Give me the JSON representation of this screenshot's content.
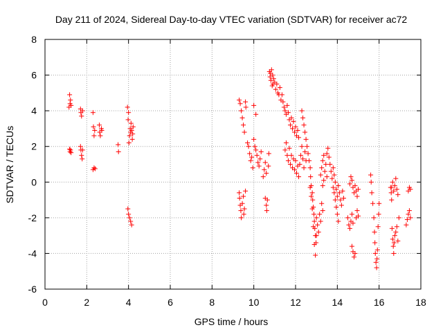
{
  "chart_data": {
    "type": "scatter",
    "title": "Day 211 of 2024, Sidereal Day-to-day VTEC variation (SDTVAR) for receiver ac72",
    "xlabel": "GPS time / hours",
    "ylabel": "SDTVAR / TECUs",
    "xlim": [
      0,
      18
    ],
    "ylim": [
      -6,
      8
    ],
    "xticks": [
      "0",
      "2",
      "4",
      "6",
      "8",
      "10",
      "12",
      "14",
      "16",
      "18"
    ],
    "yticks": [
      "-6",
      "-4",
      "-2",
      "0",
      "2",
      "4",
      "6",
      "8"
    ],
    "grid": true,
    "marker": "plus",
    "marker_color": "#ff0000",
    "series": [
      {
        "name": "SDTVAR",
        "points": [
          [
            1.15,
            4.2
          ],
          [
            1.18,
            4.9
          ],
          [
            1.2,
            4.4
          ],
          [
            1.22,
            4.6
          ],
          [
            1.25,
            4.3
          ],
          [
            1.2,
            1.7
          ],
          [
            1.22,
            1.8
          ],
          [
            1.25,
            1.65
          ],
          [
            1.18,
            1.85
          ],
          [
            1.7,
            4.1
          ],
          [
            1.72,
            3.9
          ],
          [
            1.75,
            3.7
          ],
          [
            1.8,
            4.0
          ],
          [
            1.7,
            2.0
          ],
          [
            1.72,
            1.8
          ],
          [
            1.75,
            1.5
          ],
          [
            1.78,
            1.3
          ],
          [
            1.8,
            1.8
          ],
          [
            2.3,
            3.9
          ],
          [
            2.32,
            3.1
          ],
          [
            2.35,
            2.6
          ],
          [
            2.38,
            2.9
          ],
          [
            2.3,
            0.7
          ],
          [
            2.35,
            0.8
          ],
          [
            2.4,
            0.75
          ],
          [
            2.6,
            3.2
          ],
          [
            2.62,
            2.8
          ],
          [
            2.65,
            2.6
          ],
          [
            2.7,
            3.0
          ],
          [
            2.72,
            2.9
          ],
          [
            3.5,
            2.1
          ],
          [
            3.52,
            1.7
          ],
          [
            3.95,
            4.2
          ],
          [
            3.98,
            3.5
          ],
          [
            4.0,
            3.9
          ],
          [
            4.02,
            2.2
          ],
          [
            4.05,
            2.6
          ],
          [
            4.08,
            3.0
          ],
          [
            4.1,
            2.8
          ],
          [
            4.12,
            3.3
          ],
          [
            4.15,
            2.9
          ],
          [
            4.18,
            2.4
          ],
          [
            4.2,
            2.7
          ],
          [
            4.22,
            3.1
          ],
          [
            3.97,
            -1.5
          ],
          [
            4.0,
            -1.8
          ],
          [
            4.05,
            -2.0
          ],
          [
            4.1,
            -2.2
          ],
          [
            4.15,
            -2.4
          ],
          [
            9.3,
            -0.6
          ],
          [
            9.32,
            -0.9
          ],
          [
            9.35,
            -1.3
          ],
          [
            9.38,
            -1.6
          ],
          [
            9.4,
            -2.0
          ],
          [
            9.45,
            -1.2
          ],
          [
            9.5,
            -0.8
          ],
          [
            9.52,
            -1.8
          ],
          [
            9.55,
            -1.5
          ],
          [
            9.6,
            -0.5
          ],
          [
            9.3,
            4.6
          ],
          [
            9.35,
            4.4
          ],
          [
            9.4,
            4.0
          ],
          [
            9.45,
            3.6
          ],
          [
            9.5,
            3.2
          ],
          [
            9.55,
            2.8
          ],
          [
            9.6,
            4.5
          ],
          [
            9.62,
            4.2
          ],
          [
            9.7,
            2.2
          ],
          [
            9.75,
            2.0
          ],
          [
            9.8,
            1.6
          ],
          [
            9.85,
            1.2
          ],
          [
            9.9,
            1.4
          ],
          [
            9.95,
            0.8
          ],
          [
            10.0,
            2.4
          ],
          [
            10.05,
            2.0
          ],
          [
            10.1,
            1.8
          ],
          [
            10.15,
            1.5
          ],
          [
            10.2,
            1.1
          ],
          [
            10.25,
            0.9
          ],
          [
            10.3,
            1.3
          ],
          [
            10.35,
            1.7
          ],
          [
            10.0,
            4.3
          ],
          [
            10.1,
            3.8
          ],
          [
            10.45,
            0.3
          ],
          [
            10.5,
            0.7
          ],
          [
            10.55,
            1.1
          ],
          [
            10.6,
            0.5
          ],
          [
            10.55,
            -0.9
          ],
          [
            10.6,
            -1.3
          ],
          [
            10.62,
            -1.6
          ],
          [
            10.65,
            -1.0
          ],
          [
            10.7,
            0.9
          ],
          [
            10.72,
            1.6
          ],
          [
            10.75,
            6.2
          ],
          [
            10.78,
            5.9
          ],
          [
            10.8,
            6.1
          ],
          [
            10.82,
            5.7
          ],
          [
            10.85,
            6.3
          ],
          [
            10.88,
            5.4
          ],
          [
            10.9,
            6.0
          ],
          [
            10.92,
            5.5
          ],
          [
            10.95,
            5.8
          ],
          [
            11.0,
            5.6
          ],
          [
            11.05,
            5.2
          ],
          [
            11.1,
            5.5
          ],
          [
            11.15,
            5.0
          ],
          [
            11.2,
            4.9
          ],
          [
            11.25,
            5.3
          ],
          [
            11.3,
            4.6
          ],
          [
            11.35,
            4.9
          ],
          [
            11.4,
            4.5
          ],
          [
            11.45,
            4.2
          ],
          [
            11.5,
            4.0
          ],
          [
            11.55,
            3.8
          ],
          [
            11.6,
            4.3
          ],
          [
            11.65,
            3.9
          ],
          [
            11.7,
            3.5
          ],
          [
            11.75,
            3.2
          ],
          [
            11.8,
            3.6
          ],
          [
            11.85,
            3.0
          ],
          [
            11.9,
            3.4
          ],
          [
            11.95,
            2.8
          ],
          [
            12.0,
            3.1
          ],
          [
            12.05,
            2.6
          ],
          [
            12.1,
            2.9
          ],
          [
            12.15,
            2.5
          ],
          [
            11.5,
            1.8
          ],
          [
            11.55,
            2.2
          ],
          [
            11.6,
            1.5
          ],
          [
            11.65,
            1.2
          ],
          [
            11.7,
            1.9
          ],
          [
            11.75,
            1.0
          ],
          [
            11.8,
            1.5
          ],
          [
            11.85,
            0.8
          ],
          [
            11.9,
            1.3
          ],
          [
            11.95,
            0.7
          ],
          [
            12.0,
            1.2
          ],
          [
            12.05,
            0.5
          ],
          [
            12.1,
            0.9
          ],
          [
            12.15,
            0.3
          ],
          [
            12.2,
            1.0
          ],
          [
            12.25,
            1.5
          ],
          [
            12.3,
            2.0
          ],
          [
            12.35,
            1.3
          ],
          [
            12.4,
            0.8
          ],
          [
            12.45,
            1.7
          ],
          [
            12.5,
            1.2
          ],
          [
            12.3,
            4.0
          ],
          [
            12.35,
            3.6
          ],
          [
            12.4,
            3.2
          ],
          [
            12.45,
            2.8
          ],
          [
            12.5,
            2.4
          ],
          [
            12.55,
            2.0
          ],
          [
            12.6,
            1.6
          ],
          [
            12.65,
            1.2
          ],
          [
            12.7,
            0.8
          ],
          [
            12.72,
            0.3
          ],
          [
            12.75,
            -0.2
          ],
          [
            12.8,
            -0.6
          ],
          [
            12.82,
            -1.0
          ],
          [
            12.85,
            -1.4
          ],
          [
            12.88,
            -1.8
          ],
          [
            12.9,
            -2.2
          ],
          [
            12.92,
            -2.6
          ],
          [
            12.95,
            -3.0
          ],
          [
            12.98,
            -3.4
          ],
          [
            13.0,
            -3.0
          ],
          [
            12.7,
            -0.3
          ],
          [
            12.75,
            -0.8
          ],
          [
            12.8,
            -1.5
          ],
          [
            12.85,
            -2.5
          ],
          [
            12.9,
            -3.5
          ],
          [
            12.95,
            -4.1
          ],
          [
            13.0,
            -2.0
          ],
          [
            13.05,
            -2.4
          ],
          [
            13.1,
            -2.8
          ],
          [
            13.15,
            -1.8
          ],
          [
            13.2,
            -2.2
          ],
          [
            13.25,
            -1.2
          ],
          [
            13.3,
            -1.6
          ],
          [
            13.2,
            0.4
          ],
          [
            13.25,
            0.8
          ],
          [
            13.3,
            1.2
          ],
          [
            13.35,
            1.5
          ],
          [
            13.3,
            -0.2
          ],
          [
            13.35,
            0.1
          ],
          [
            13.4,
            0.6
          ],
          [
            13.45,
            1.0
          ],
          [
            13.5,
            0.3
          ],
          [
            13.5,
            1.6
          ],
          [
            13.55,
            1.9
          ],
          [
            13.6,
            1.4
          ],
          [
            13.65,
            1.0
          ],
          [
            13.7,
            0.6
          ],
          [
            13.75,
            0.2
          ],
          [
            13.8,
            -0.3
          ],
          [
            13.85,
            0.4
          ],
          [
            13.9,
            0.0
          ],
          [
            13.95,
            -0.4
          ],
          [
            14.0,
            -0.8
          ],
          [
            14.05,
            -0.2
          ],
          [
            14.1,
            -0.6
          ],
          [
            14.15,
            -1.0
          ],
          [
            14.2,
            -1.3
          ],
          [
            14.25,
            -0.5
          ],
          [
            14.3,
            -0.9
          ],
          [
            13.8,
            0.8
          ],
          [
            13.85,
            -0.6
          ],
          [
            13.9,
            -1.0
          ],
          [
            13.95,
            -1.4
          ],
          [
            14.0,
            -1.8
          ],
          [
            14.05,
            -2.2
          ],
          [
            14.5,
            -2.0
          ],
          [
            14.55,
            -2.4
          ],
          [
            14.6,
            -2.6
          ],
          [
            14.65,
            -2.2
          ],
          [
            14.7,
            -1.8
          ],
          [
            14.75,
            -2.3
          ],
          [
            14.6,
            -0.1
          ],
          [
            14.65,
            0.3
          ],
          [
            14.7,
            0.1
          ],
          [
            14.75,
            -0.3
          ],
          [
            14.8,
            -0.6
          ],
          [
            14.85,
            -0.2
          ],
          [
            14.9,
            -0.5
          ],
          [
            14.95,
            -0.8
          ],
          [
            15.0,
            -0.4
          ],
          [
            14.9,
            -2.0
          ],
          [
            14.95,
            -1.6
          ],
          [
            15.0,
            -1.9
          ],
          [
            14.7,
            -3.6
          ],
          [
            14.75,
            -3.9
          ],
          [
            14.8,
            -4.2
          ],
          [
            14.85,
            -4.0
          ],
          [
            15.6,
            0.4
          ],
          [
            15.62,
            0.0
          ],
          [
            15.65,
            -0.6
          ],
          [
            15.7,
            -1.2
          ],
          [
            15.75,
            -2.0
          ],
          [
            15.78,
            -2.8
          ],
          [
            15.8,
            -3.4
          ],
          [
            15.82,
            -4.0
          ],
          [
            15.85,
            -4.5
          ],
          [
            15.88,
            -4.8
          ],
          [
            15.9,
            -4.3
          ],
          [
            15.92,
            -3.8
          ],
          [
            15.95,
            -2.5
          ],
          [
            15.98,
            -1.8
          ],
          [
            16.0,
            -1.2
          ],
          [
            16.55,
            -0.3
          ],
          [
            16.58,
            -0.6
          ],
          [
            16.6,
            -1.0
          ],
          [
            16.62,
            -2.6
          ],
          [
            16.65,
            -3.2
          ],
          [
            16.68,
            -3.6
          ],
          [
            16.7,
            -4.0
          ],
          [
            16.72,
            -3.4
          ],
          [
            16.75,
            -3.0
          ],
          [
            16.8,
            -2.8
          ],
          [
            16.85,
            -2.5
          ],
          [
            16.9,
            -3.3
          ],
          [
            16.95,
            -2.0
          ],
          [
            16.6,
            -0.3
          ],
          [
            16.65,
            0.0
          ],
          [
            16.7,
            -0.5
          ],
          [
            16.75,
            -0.2
          ],
          [
            16.8,
            0.2
          ],
          [
            16.85,
            -0.4
          ],
          [
            16.9,
            -0.7
          ],
          [
            17.3,
            -2.4
          ],
          [
            17.35,
            -2.1
          ],
          [
            17.4,
            -1.8
          ],
          [
            17.45,
            -1.6
          ],
          [
            17.5,
            -2.0
          ],
          [
            17.4,
            -0.5
          ],
          [
            17.45,
            -0.3
          ],
          [
            17.5,
            -0.4
          ]
        ]
      }
    ]
  }
}
